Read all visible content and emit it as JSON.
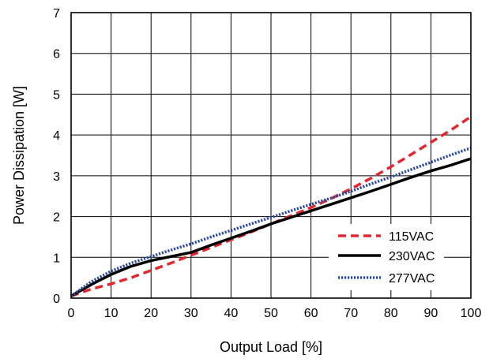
{
  "chart_data": {
    "type": "line",
    "title": "",
    "xlabel": "Output Load [%]",
    "ylabel": "Power Dissipation [W]",
    "xlim": [
      0,
      100
    ],
    "ylim": [
      0,
      7
    ],
    "xticks": [
      0,
      10,
      20,
      30,
      40,
      50,
      60,
      70,
      80,
      90,
      100
    ],
    "yticks": [
      0,
      1,
      2,
      3,
      4,
      5,
      6,
      7
    ],
    "grid": true,
    "legend_position": "bottom-right",
    "series": [
      {
        "name": "115VAC",
        "color": "#e0282e",
        "style": "dashed",
        "x": [
          0,
          5,
          10,
          15,
          20,
          25,
          30,
          35,
          40,
          45,
          50,
          55,
          60,
          65,
          70,
          75,
          80,
          85,
          90,
          95,
          100
        ],
        "y": [
          0.05,
          0.22,
          0.35,
          0.5,
          0.68,
          0.86,
          1.05,
          1.24,
          1.43,
          1.62,
          1.82,
          2.02,
          2.22,
          2.44,
          2.68,
          2.94,
          3.22,
          3.52,
          3.82,
          4.12,
          4.45
        ]
      },
      {
        "name": "230VAC",
        "color": "#000000",
        "style": "solid",
        "x": [
          0,
          5,
          10,
          15,
          20,
          25,
          30,
          35,
          40,
          45,
          50,
          55,
          60,
          65,
          70,
          75,
          80,
          85,
          90,
          95,
          100
        ],
        "y": [
          0.05,
          0.33,
          0.58,
          0.78,
          0.92,
          1.02,
          1.12,
          1.3,
          1.47,
          1.64,
          1.82,
          1.98,
          2.14,
          2.3,
          2.46,
          2.62,
          2.79,
          2.96,
          3.12,
          3.26,
          3.42
        ]
      },
      {
        "name": "277VAC",
        "color": "#2a4a9a",
        "style": "dotted",
        "x": [
          0,
          5,
          10,
          15,
          20,
          25,
          30,
          35,
          40,
          45,
          50,
          55,
          60,
          65,
          70,
          75,
          80,
          85,
          90,
          95,
          100
        ],
        "y": [
          0.05,
          0.4,
          0.66,
          0.86,
          1.02,
          1.18,
          1.33,
          1.5,
          1.66,
          1.82,
          1.98,
          2.14,
          2.3,
          2.45,
          2.62,
          2.8,
          2.97,
          3.15,
          3.33,
          3.51,
          3.68
        ]
      }
    ]
  }
}
